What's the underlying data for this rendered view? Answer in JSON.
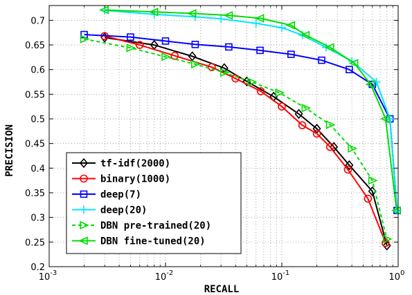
{
  "chart_data": {
    "type": "line",
    "title": "",
    "xlabel": "RECALL",
    "ylabel": "PRECISION",
    "xscale": "log",
    "xlim": [
      0.001,
      1
    ],
    "ylim": [
      0.2,
      0.73
    ],
    "x_ticks": [
      {
        "value": 0.001,
        "base": "10",
        "exp": "-3"
      },
      {
        "value": 0.01,
        "base": "10",
        "exp": "-2"
      },
      {
        "value": 0.1,
        "base": "10",
        "exp": "-1"
      },
      {
        "value": 1,
        "base": "10",
        "exp": "0"
      }
    ],
    "y_ticks": [
      {
        "value": 0.2,
        "label": "0.2"
      },
      {
        "value": 0.25,
        "label": "0.25"
      },
      {
        "value": 0.3,
        "label": "0.3"
      },
      {
        "value": 0.35,
        "label": "0.35"
      },
      {
        "value": 0.4,
        "label": "0.4"
      },
      {
        "value": 0.45,
        "label": "0.45"
      },
      {
        "value": 0.5,
        "label": "0.5"
      },
      {
        "value": 0.55,
        "label": "0.55"
      },
      {
        "value": 0.6,
        "label": "0.6"
      },
      {
        "value": 0.65,
        "label": "0.65"
      },
      {
        "value": 0.7,
        "label": "0.7"
      }
    ],
    "grid": true,
    "legend_position": "bottom-left",
    "series": [
      {
        "name": "tf-idf(2000)",
        "color": "#000000",
        "marker": "diamond",
        "dashed": false,
        "x": [
          0.003,
          0.008,
          0.017,
          0.032,
          0.05,
          0.085,
          0.14,
          0.2,
          0.28,
          0.38,
          0.6,
          0.8
        ],
        "y": [
          0.665,
          0.65,
          0.627,
          0.603,
          0.576,
          0.545,
          0.51,
          0.48,
          0.443,
          0.406,
          0.353,
          0.243
        ]
      },
      {
        "name": "binary(1000)",
        "color": "#ff0000",
        "marker": "circle",
        "dashed": false,
        "x": [
          0.003,
          0.006,
          0.012,
          0.025,
          0.04,
          0.066,
          0.1,
          0.15,
          0.2,
          0.26,
          0.37,
          0.55,
          0.78
        ],
        "y": [
          0.668,
          0.65,
          0.628,
          0.605,
          0.582,
          0.556,
          0.525,
          0.487,
          0.47,
          0.443,
          0.397,
          0.338,
          0.248
        ]
      },
      {
        "name": "deep(7)",
        "color": "#0000ff",
        "marker": "square",
        "dashed": false,
        "x": [
          0.002,
          0.005,
          0.01,
          0.018,
          0.035,
          0.065,
          0.12,
          0.22,
          0.38,
          0.6,
          0.85,
          0.98
        ],
        "y": [
          0.671,
          0.666,
          0.658,
          0.651,
          0.646,
          0.639,
          0.631,
          0.619,
          0.6,
          0.57,
          0.5,
          0.314
        ]
      },
      {
        "name": "deep(20)",
        "color": "#00e5ff",
        "marker": "plus",
        "dashed": false,
        "x": [
          0.003,
          0.008,
          0.018,
          0.03,
          0.06,
          0.1,
          0.15,
          0.24,
          0.4,
          0.65,
          0.85,
          0.98
        ],
        "y": [
          0.72,
          0.712,
          0.707,
          0.703,
          0.694,
          0.685,
          0.67,
          0.645,
          0.617,
          0.575,
          0.5,
          0.314
        ]
      },
      {
        "name": "DBN pre-trained(20)",
        "color": "#00dd00",
        "marker": "triangle-right",
        "dashed": true,
        "x": [
          0.002,
          0.005,
          0.01,
          0.018,
          0.032,
          0.055,
          0.095,
          0.16,
          0.26,
          0.4,
          0.6,
          0.8
        ],
        "y": [
          0.662,
          0.644,
          0.626,
          0.611,
          0.594,
          0.575,
          0.553,
          0.522,
          0.488,
          0.44,
          0.375,
          0.256
        ]
      },
      {
        "name": "DBN fine-tuned(20)",
        "color": "#00dd00",
        "marker": "triangle-left",
        "dashed": false,
        "x": [
          0.003,
          0.008,
          0.017,
          0.035,
          0.065,
          0.12,
          0.16,
          0.26,
          0.42,
          0.58,
          0.78,
          0.97
        ],
        "y": [
          0.721,
          0.717,
          0.714,
          0.71,
          0.704,
          0.69,
          0.67,
          0.645,
          0.613,
          0.57,
          0.5,
          0.314
        ]
      }
    ]
  }
}
